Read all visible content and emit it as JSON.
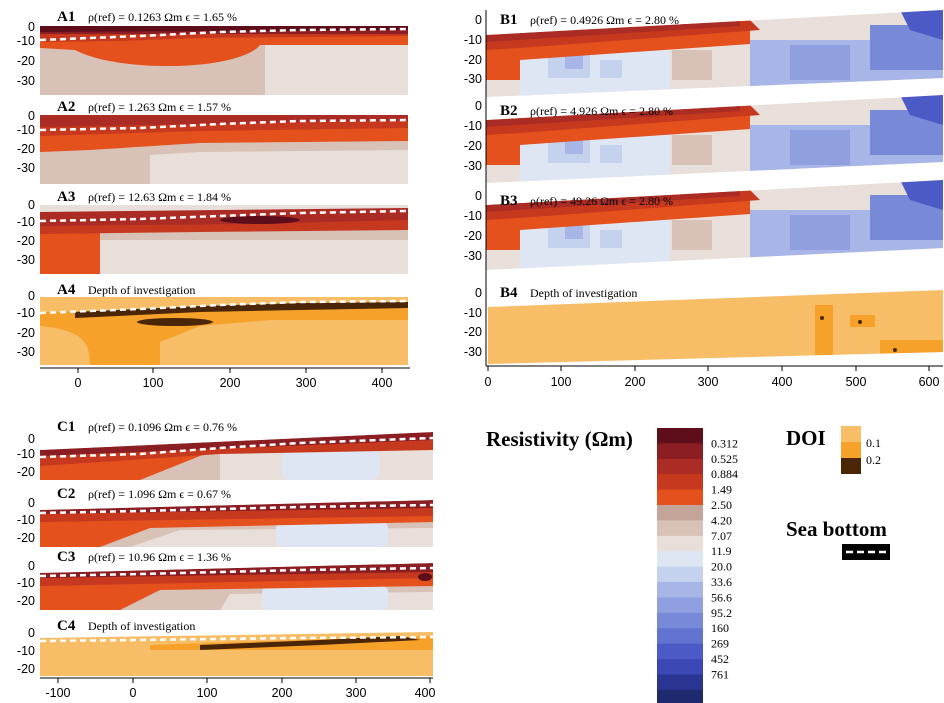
{
  "colors": {
    "resistivity_scale": [
      "#5e0d1a",
      "#8a1e22",
      "#ab2c24",
      "#c7391e",
      "#e5511d",
      "#c4a59a",
      "#d8c1b7",
      "#e9dfda",
      "#dfe6f3",
      "#c5d2ee",
      "#a7b6e6",
      "#8f9fe0",
      "#7889d8",
      "#6273cf",
      "#4b5ac4",
      "#3a47b5",
      "#2a3592",
      "#1f2a6e"
    ],
    "doi_scale": [
      "#f7be67",
      "#f5a12a",
      "#4a2506"
    ],
    "sea_bottom": "#ffffff"
  },
  "colorbar": {
    "title": "Resistivity (Ωm)",
    "boundary_labels": [
      "0.312",
      "0.525",
      "0.884",
      "1.49",
      "2.50",
      "4.20",
      "7.07",
      "11.9",
      "20.0",
      "33.6",
      "56.6",
      "95.2",
      "160",
      "269",
      "452",
      "761"
    ]
  },
  "doi_legend": {
    "title": "DOI",
    "labels": [
      "0.1",
      "0.2"
    ]
  },
  "sea_bottom_legend": {
    "title": "Sea bottom"
  },
  "panels": [
    {
      "id": "A1",
      "info": "ρ(ref) = 0.1263 Ωm   ϵ = 1.65 %"
    },
    {
      "id": "A2",
      "info": "ρ(ref) = 1.263 Ωm   ϵ = 1.57 %"
    },
    {
      "id": "A3",
      "info": "ρ(ref) = 12.63 Ωm   ϵ = 1.84 %"
    },
    {
      "id": "A4",
      "info": "Depth of investigation"
    },
    {
      "id": "B1",
      "info": "ρ(ref) = 0.4926 Ωm   ϵ = 2.80 %"
    },
    {
      "id": "B2",
      "info": "ρ(ref) = 4.926 Ωm   ϵ = 2.80 %"
    },
    {
      "id": "B3",
      "info": "ρ(ref) = 49.26 Ωm   ϵ = 2.80 %"
    },
    {
      "id": "B4",
      "info": "Depth of investigation"
    },
    {
      "id": "C1",
      "info": "ρ(ref) = 0.1096 Ωm   ϵ = 0.76 %"
    },
    {
      "id": "C2",
      "info": "ρ(ref) = 1.096 Ωm   ϵ = 0.67 %"
    },
    {
      "id": "C3",
      "info": "ρ(ref) = 10.96 Ωm   ϵ = 1.36 %"
    },
    {
      "id": "C4",
      "info": "Depth of investigation"
    }
  ],
  "axes": {
    "A_y_ticks": [
      "0",
      "-10",
      "-20",
      "-30"
    ],
    "B_y_ticks": [
      "0",
      "-10",
      "-20",
      "-30"
    ],
    "C_y_ticks": [
      "0",
      "-10",
      "-20"
    ],
    "A_x_ticks": [
      "0",
      "100",
      "200",
      "300",
      "400"
    ],
    "B_x_ticks": [
      "0",
      "100",
      "200",
      "300",
      "400",
      "500",
      "600"
    ],
    "C_x_ticks": [
      "-100",
      "0",
      "100",
      "200",
      "300",
      "400"
    ]
  }
}
